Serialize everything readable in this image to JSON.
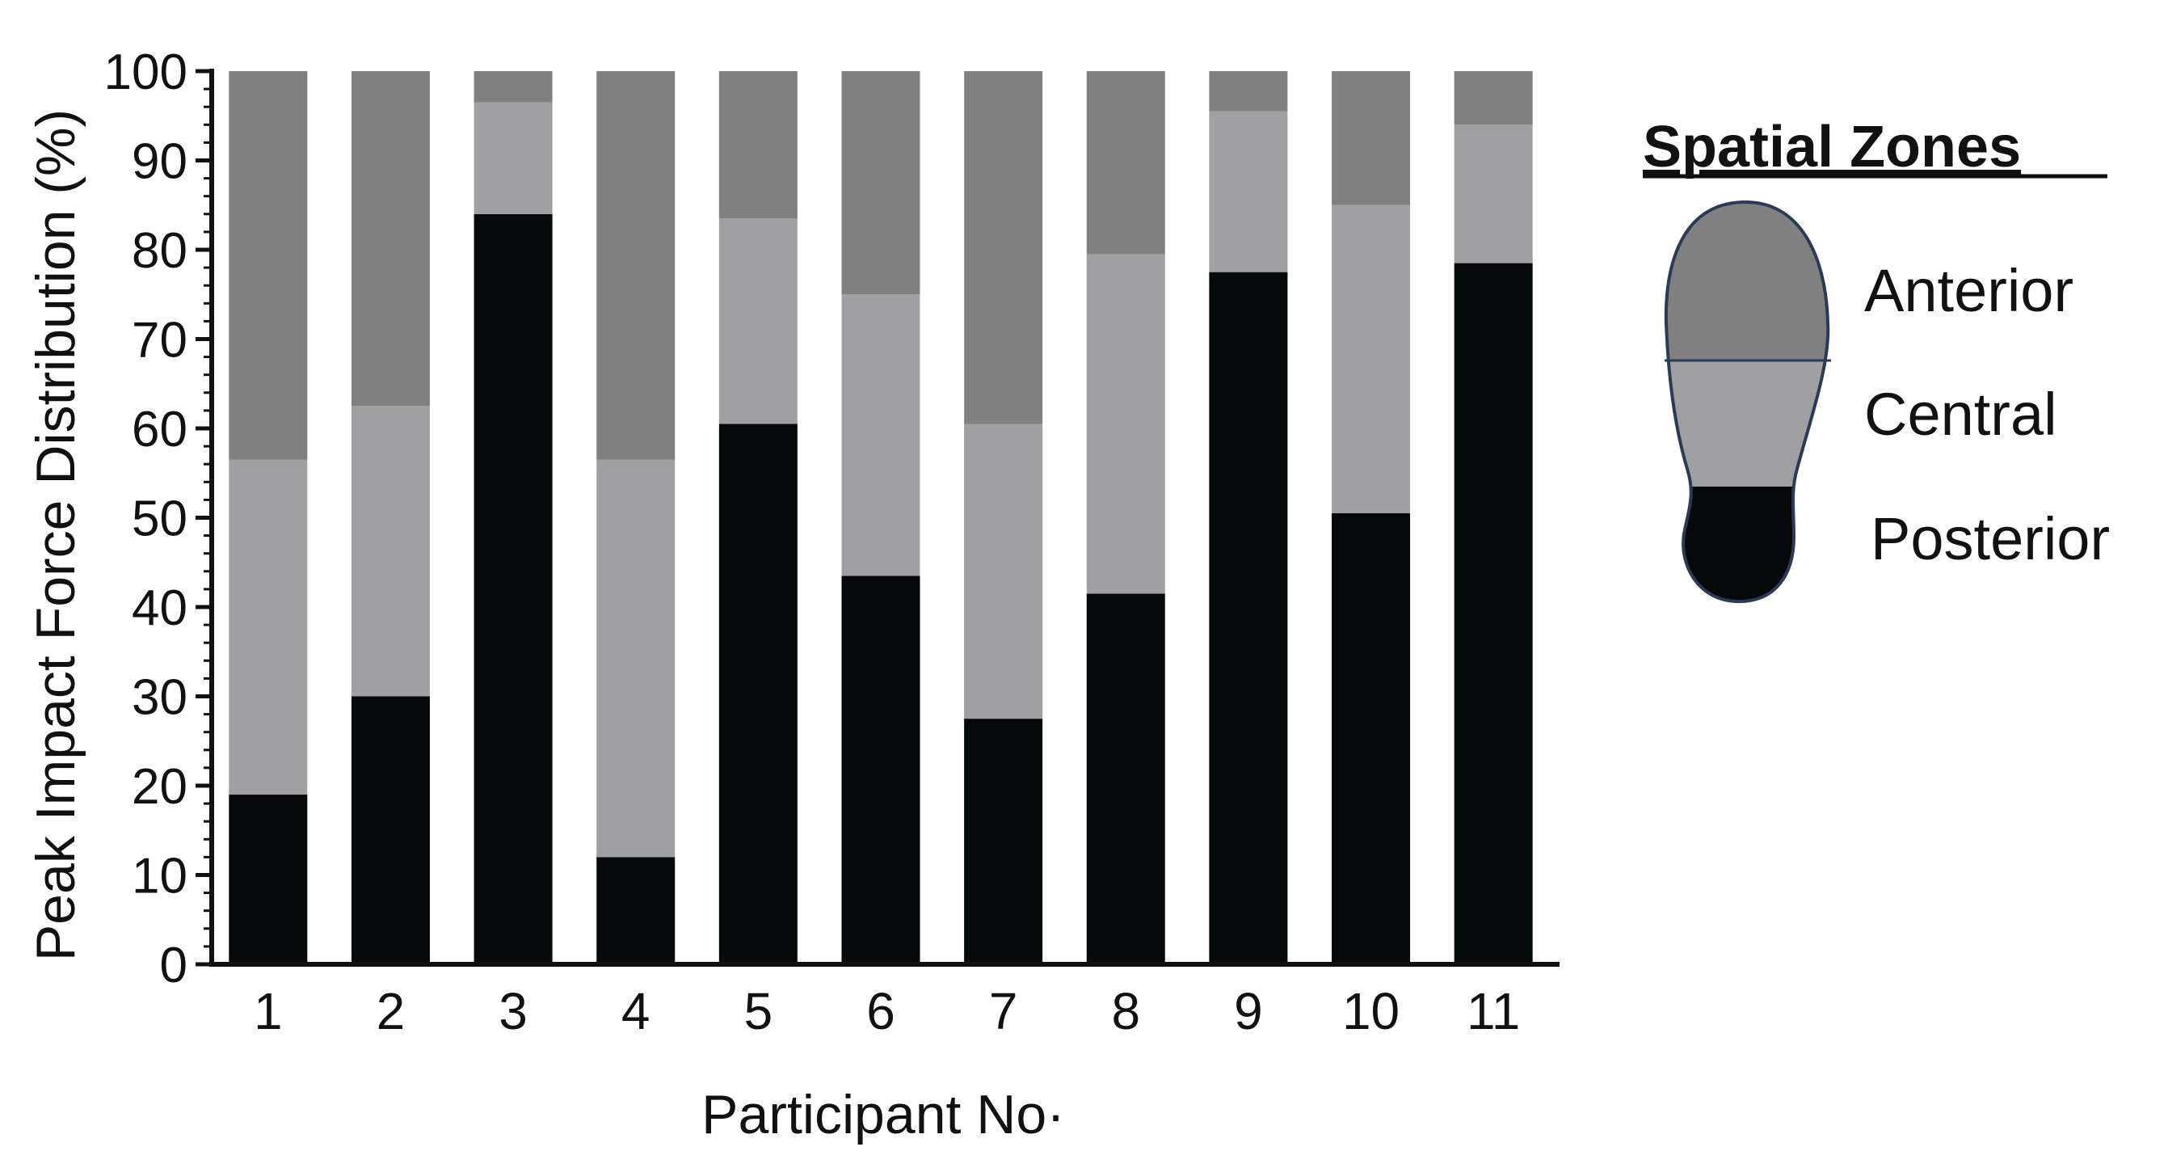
{
  "chart_data": {
    "type": "bar",
    "stacked": true,
    "title": "",
    "xlabel": "Participant  No·",
    "ylabel": "Peak Impact Force Distribution  (%)",
    "ylim": [
      0,
      100
    ],
    "yticks": [
      "0",
      "10",
      "20",
      "30",
      "40",
      "50",
      "60",
      "70",
      "80",
      "90",
      "100"
    ],
    "categories": [
      "1",
      "2",
      "3",
      "4",
      "5",
      "6",
      "7",
      "8",
      "9",
      "10",
      "11"
    ],
    "series": [
      {
        "name": "Posterior",
        "color": "#050909",
        "values": [
          19,
          30,
          84,
          12,
          60.5,
          43.5,
          27.5,
          41.5,
          77.5,
          50.5,
          78.5
        ]
      },
      {
        "name": "Central",
        "color": "#a0a0a3",
        "values": [
          37.5,
          32.5,
          12.5,
          44.5,
          23,
          31.5,
          33,
          38,
          18,
          34.5,
          15.5
        ]
      },
      {
        "name": "Anterior",
        "color": "#808080",
        "values": [
          43.5,
          37.5,
          3.5,
          43.5,
          16.5,
          25,
          39.5,
          20.5,
          4.5,
          15,
          6
        ]
      }
    ],
    "grid": false,
    "legend": {
      "title": "Spatial Zones",
      "placement": "right",
      "entries": [
        "Anterior",
        "Central",
        "Posterior"
      ],
      "icon": "shoe-sole-icon"
    }
  }
}
